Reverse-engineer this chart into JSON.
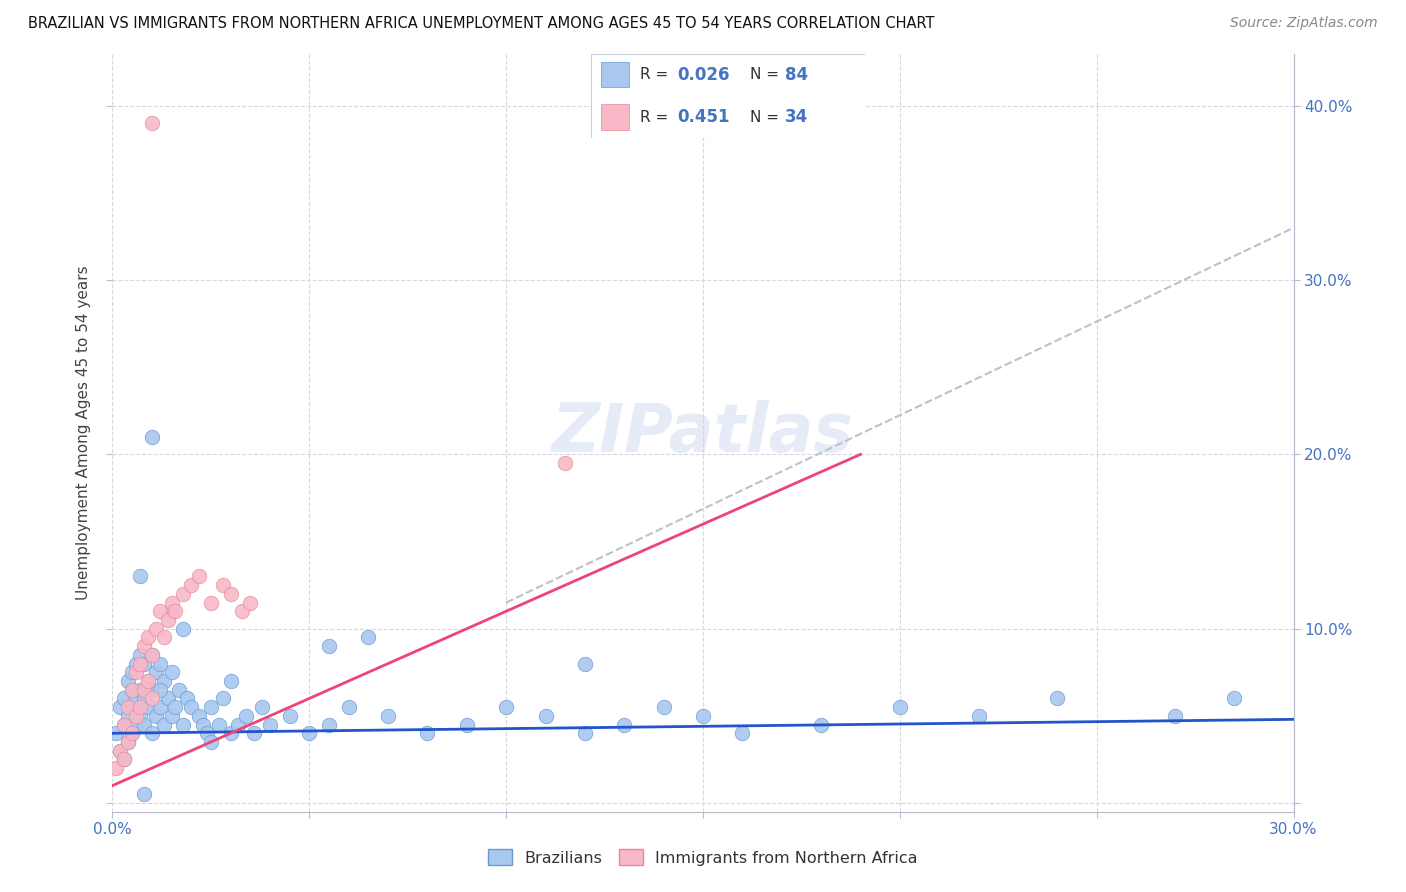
{
  "title": "BRAZILIAN VS IMMIGRANTS FROM NORTHERN AFRICA UNEMPLOYMENT AMONG AGES 45 TO 54 YEARS CORRELATION CHART",
  "source": "Source: ZipAtlas.com",
  "ylabel": "Unemployment Among Ages 45 to 54 years",
  "xlim": [
    0,
    0.3
  ],
  "ylim": [
    -0.005,
    0.43
  ],
  "r_blue": 0.026,
  "n_blue": 84,
  "r_pink": 0.451,
  "n_pink": 34,
  "blue_color": "#A8C8F0",
  "blue_edge": "#6699CC",
  "pink_color": "#F8B8C8",
  "pink_edge": "#E88898",
  "trend_blue_color": "#2255CC",
  "trend_pink_color": "#EE4477",
  "trend_gray_color": "#C0C0CC",
  "axis_color": "#4472C4",
  "watermark": "ZIPatlas",
  "blue_x": [
    0.001,
    0.002,
    0.002,
    0.003,
    0.003,
    0.003,
    0.004,
    0.004,
    0.004,
    0.005,
    0.005,
    0.005,
    0.005,
    0.006,
    0.006,
    0.006,
    0.007,
    0.007,
    0.007,
    0.008,
    0.008,
    0.008,
    0.009,
    0.009,
    0.01,
    0.01,
    0.01,
    0.011,
    0.011,
    0.012,
    0.012,
    0.013,
    0.013,
    0.014,
    0.015,
    0.015,
    0.016,
    0.017,
    0.018,
    0.019,
    0.02,
    0.022,
    0.023,
    0.024,
    0.025,
    0.027,
    0.028,
    0.03,
    0.032,
    0.034,
    0.036,
    0.038,
    0.04,
    0.045,
    0.05,
    0.055,
    0.06,
    0.07,
    0.08,
    0.09,
    0.1,
    0.11,
    0.12,
    0.13,
    0.14,
    0.15,
    0.16,
    0.18,
    0.2,
    0.22,
    0.007,
    0.24,
    0.27,
    0.285,
    0.12,
    0.055,
    0.03,
    0.018,
    0.015,
    0.01,
    0.012,
    0.008,
    0.025,
    0.065
  ],
  "blue_y": [
    0.04,
    0.03,
    0.055,
    0.025,
    0.045,
    0.06,
    0.035,
    0.05,
    0.07,
    0.04,
    0.055,
    0.065,
    0.075,
    0.045,
    0.06,
    0.08,
    0.05,
    0.065,
    0.085,
    0.045,
    0.06,
    0.08,
    0.055,
    0.07,
    0.04,
    0.065,
    0.085,
    0.05,
    0.075,
    0.055,
    0.08,
    0.045,
    0.07,
    0.06,
    0.05,
    0.075,
    0.055,
    0.065,
    0.045,
    0.06,
    0.055,
    0.05,
    0.045,
    0.04,
    0.055,
    0.045,
    0.06,
    0.04,
    0.045,
    0.05,
    0.04,
    0.055,
    0.045,
    0.05,
    0.04,
    0.045,
    0.055,
    0.05,
    0.04,
    0.045,
    0.055,
    0.05,
    0.04,
    0.045,
    0.055,
    0.05,
    0.04,
    0.045,
    0.055,
    0.05,
    0.13,
    0.06,
    0.05,
    0.06,
    0.08,
    0.09,
    0.07,
    0.1,
    0.11,
    0.21,
    0.065,
    0.005,
    0.035,
    0.095
  ],
  "pink_x": [
    0.001,
    0.002,
    0.003,
    0.003,
    0.004,
    0.004,
    0.005,
    0.005,
    0.006,
    0.006,
    0.007,
    0.007,
    0.008,
    0.008,
    0.009,
    0.009,
    0.01,
    0.01,
    0.011,
    0.012,
    0.013,
    0.014,
    0.015,
    0.016,
    0.018,
    0.02,
    0.022,
    0.025,
    0.028,
    0.03,
    0.033,
    0.035,
    0.115,
    0.01
  ],
  "pink_y": [
    0.02,
    0.03,
    0.025,
    0.045,
    0.035,
    0.055,
    0.04,
    0.065,
    0.05,
    0.075,
    0.055,
    0.08,
    0.065,
    0.09,
    0.07,
    0.095,
    0.06,
    0.085,
    0.1,
    0.11,
    0.095,
    0.105,
    0.115,
    0.11,
    0.12,
    0.125,
    0.13,
    0.115,
    0.125,
    0.12,
    0.11,
    0.115,
    0.195,
    0.39
  ],
  "blue_trend": [
    0.0,
    0.3,
    0.04,
    0.048
  ],
  "pink_trend_solid": [
    0.0,
    0.19,
    0.01,
    0.2
  ],
  "pink_trend_dashed": [
    0.1,
    0.3,
    0.115,
    0.33
  ]
}
